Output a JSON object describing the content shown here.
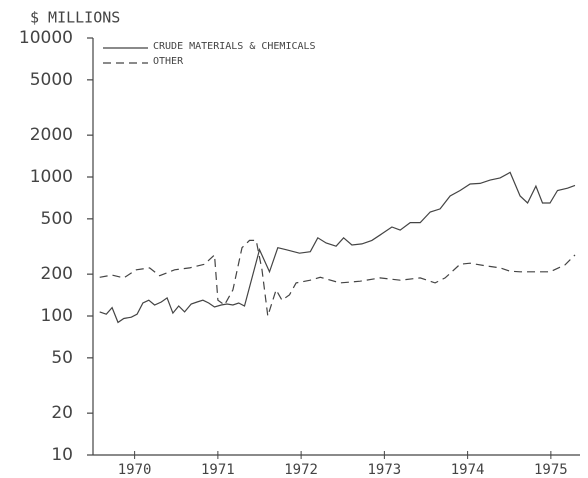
{
  "chart_data": {
    "type": "line",
    "title": "$ MILLIONS",
    "log_y": true,
    "ylim": [
      10,
      10000
    ],
    "yticks": [
      10000,
      5000,
      2000,
      1000,
      500,
      200,
      100,
      50,
      20,
      10
    ],
    "xlim": [
      1970,
      1975.85
    ],
    "xticks": [
      {
        "value": 1970.5,
        "label": "1970"
      },
      {
        "value": 1971.5,
        "label": "1971"
      },
      {
        "value": 1972.5,
        "label": "1972"
      },
      {
        "value": 1973.5,
        "label": "1973"
      },
      {
        "value": 1974.5,
        "label": "1974"
      },
      {
        "value": 1975.5,
        "label": "1975"
      }
    ],
    "legend": "upper left",
    "series": [
      {
        "name": "CRUDE MATERIALS & CHEMICALS",
        "color": "#444444",
        "dash": "solid",
        "x": [
          1970.08,
          1970.16,
          1970.23,
          1970.3,
          1970.37,
          1970.46,
          1970.53,
          1970.6,
          1970.67,
          1970.74,
          1970.82,
          1970.89,
          1970.96,
          1971.03,
          1971.1,
          1971.18,
          1971.25,
          1971.32,
          1971.39,
          1971.46,
          1971.54,
          1971.61,
          1971.68,
          1971.75,
          1971.82,
          1972.0,
          1972.12,
          1972.22,
          1972.32,
          1972.48,
          1972.61,
          1972.7,
          1972.8,
          1972.92,
          1973.01,
          1973.11,
          1973.23,
          1973.35,
          1973.47,
          1973.59,
          1973.69,
          1973.81,
          1973.93,
          1974.05,
          1974.17,
          1974.29,
          1974.41,
          1974.53,
          1974.65,
          1974.77,
          1974.89,
          1975.01,
          1975.13,
          1975.22,
          1975.32,
          1975.4,
          1975.49,
          1975.58,
          1975.7,
          1975.79
        ],
        "values": [
          107,
          103,
          115,
          90,
          96,
          98,
          103,
          124,
          130,
          120,
          126,
          135,
          105,
          118,
          107,
          122,
          126,
          130,
          124,
          116,
          120,
          122,
          120,
          124,
          118,
          300,
          208,
          310,
          300,
          283,
          290,
          365,
          335,
          318,
          365,
          324,
          330,
          350,
          390,
          437,
          415,
          470,
          470,
          560,
          590,
          730,
          800,
          890,
          900,
          950,
          985,
          1080,
          730,
          650,
          860,
          650,
          650,
          800,
          830,
          870
        ]
      },
      {
        "name": "OTHER",
        "color": "#444444",
        "dash": "dashed",
        "x": [
          1970.08,
          1970.23,
          1970.37,
          1970.52,
          1970.68,
          1970.8,
          1970.98,
          1971.16,
          1971.34,
          1971.46,
          1971.5,
          1971.58,
          1971.68,
          1971.79,
          1971.88,
          1971.96,
          1972.03,
          1972.1,
          1972.2,
          1972.27,
          1972.36,
          1972.44,
          1972.61,
          1972.73,
          1972.97,
          1973.21,
          1973.45,
          1973.69,
          1973.93,
          1974.11,
          1974.23,
          1974.41,
          1974.53,
          1974.71,
          1974.89,
          1975.01,
          1975.13,
          1975.31,
          1975.49,
          1975.67,
          1975.79
        ],
        "values": [
          190,
          197,
          188,
          215,
          222,
          195,
          215,
          222,
          236,
          275,
          130,
          120,
          154,
          310,
          350,
          350,
          215,
          100,
          154,
          130,
          142,
          173,
          181,
          190,
          173,
          178,
          188,
          181,
          188,
          173,
          188,
          236,
          240,
          230,
          222,
          210,
          208,
          208,
          208,
          233,
          275
        ]
      }
    ]
  }
}
